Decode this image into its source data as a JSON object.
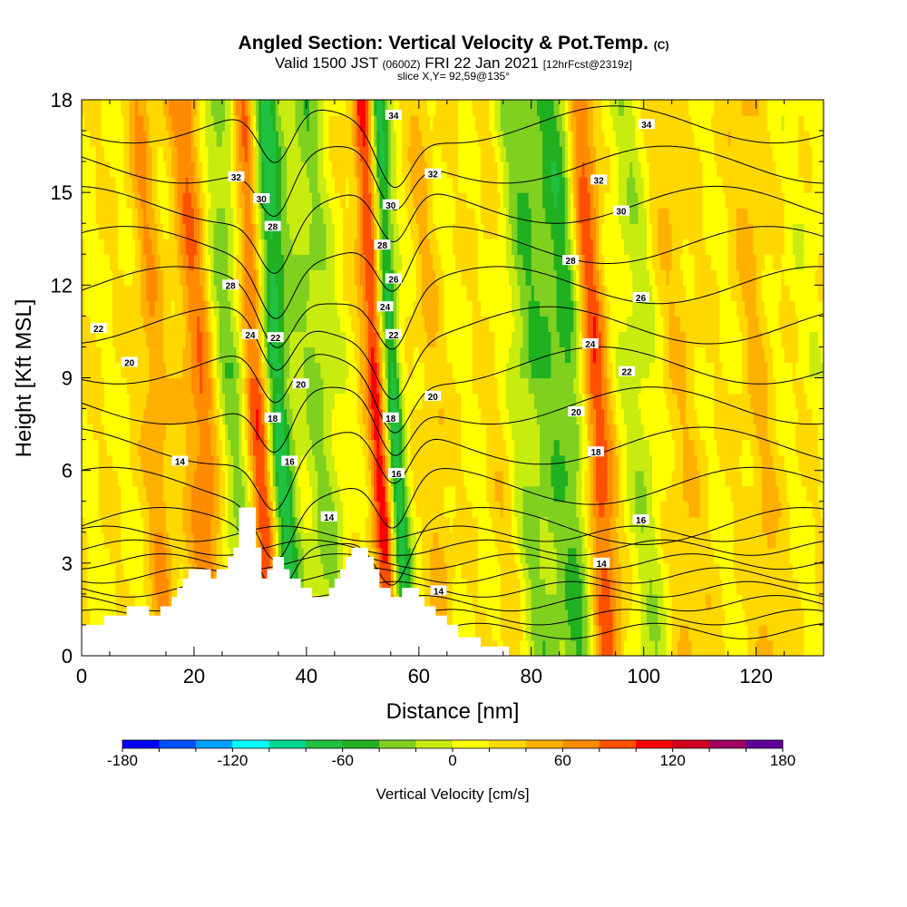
{
  "title": {
    "main": "Angled Section: Vertical Velocity & Pot.Temp.",
    "main_unit": "(C)",
    "valid_prefix": "Valid 1500 JST",
    "valid_utc": "(0600Z)",
    "valid_date": "FRI 22 Jan 2021",
    "forecast": "[12hrFcst@2319z]",
    "slice": "slice X,Y= 92,59@135°"
  },
  "chart_data": {
    "type": "heatmap",
    "xlabel": "Distance [nm]",
    "ylabel": "Height [Kft MSL]",
    "xlim": [
      0,
      132
    ],
    "ylim": [
      0,
      18
    ],
    "x_ticks": [
      "0",
      "20",
      "40",
      "60",
      "80",
      "100",
      "120"
    ],
    "y_ticks": [
      "0",
      "3",
      "6",
      "9",
      "12",
      "15",
      "18"
    ],
    "grid": false,
    "colorbar": {
      "label": "Vertical Velocity [cm/s]",
      "ticks": [
        "-180",
        "-120",
        "-60",
        "0",
        "60",
        "120",
        "180"
      ],
      "range": [
        -180,
        180
      ],
      "colors": [
        "#0000ff",
        "#0050ff",
        "#00a0ff",
        "#00ffff",
        "#00d890",
        "#20c040",
        "#20b020",
        "#80d020",
        "#c8ec10",
        "#ffff00",
        "#ffd800",
        "#ffb000",
        "#ff8c00",
        "#ff5000",
        "#ff0000",
        "#d00020",
        "#a00060",
        "#60009a"
      ]
    },
    "updrafts": [
      {
        "x": 22,
        "w": 2.2,
        "v": 65
      },
      {
        "x": 32.5,
        "w": 1.8,
        "v": 150
      },
      {
        "x": 54,
        "w": 1.6,
        "v": 140
      },
      {
        "x": 92,
        "w": 1.8,
        "v": 85
      },
      {
        "x": 13.5,
        "w": 1.6,
        "v": 40
      },
      {
        "x": 63,
        "w": 1.5,
        "v": 25
      },
      {
        "x": 75,
        "w": 2,
        "v": 25
      },
      {
        "x": 107,
        "w": 2.5,
        "v": 20
      },
      {
        "x": 121,
        "w": 2,
        "v": 25
      }
    ],
    "downdrafts": [
      {
        "x": 34.5,
        "w": 2.2,
        "v": -130
      },
      {
        "x": 55.5,
        "w": 1.4,
        "v": -155
      },
      {
        "x": 27,
        "w": 2.5,
        "v": -45
      },
      {
        "x": 43,
        "w": 2.5,
        "v": -40
      },
      {
        "x": 82,
        "w": 5,
        "v": -45
      },
      {
        "x": 88,
        "w": 2,
        "v": -35
      },
      {
        "x": 100,
        "w": 2.5,
        "v": -30
      }
    ],
    "terrain": [
      [
        0,
        1
      ],
      [
        4,
        1
      ],
      [
        4,
        1.3
      ],
      [
        8,
        1.3
      ],
      [
        8,
        1.6
      ],
      [
        12,
        1.6
      ],
      [
        12,
        1.3
      ],
      [
        14,
        1.3
      ],
      [
        14,
        1.6
      ],
      [
        16,
        1.6
      ],
      [
        16,
        1.9
      ],
      [
        17,
        1.9
      ],
      [
        17,
        2.2
      ],
      [
        18,
        2.2
      ],
      [
        18,
        2.5
      ],
      [
        19,
        2.5
      ],
      [
        19,
        2.8
      ],
      [
        23,
        2.8
      ],
      [
        23,
        2.5
      ],
      [
        24,
        2.5
      ],
      [
        24,
        2.8
      ],
      [
        26,
        2.8
      ],
      [
        26,
        3.2
      ],
      [
        27,
        3.2
      ],
      [
        27,
        3.5
      ],
      [
        28,
        3.5
      ],
      [
        28,
        4.8
      ],
      [
        31,
        4.8
      ],
      [
        31,
        3.5
      ],
      [
        32,
        3.5
      ],
      [
        32,
        2.5
      ],
      [
        33,
        2.5
      ],
      [
        33,
        2.8
      ],
      [
        34,
        2.8
      ],
      [
        34,
        3.2
      ],
      [
        36,
        3.2
      ],
      [
        36,
        2.8
      ],
      [
        37,
        2.8
      ],
      [
        37,
        2.5
      ],
      [
        39,
        2.5
      ],
      [
        39,
        2.2
      ],
      [
        41,
        2.2
      ],
      [
        41,
        1.9
      ],
      [
        44,
        1.9
      ],
      [
        44,
        2.2
      ],
      [
        45,
        2.2
      ],
      [
        45,
        2.5
      ],
      [
        46,
        2.5
      ],
      [
        46,
        2.8
      ],
      [
        47,
        2.8
      ],
      [
        47,
        3.2
      ],
      [
        48,
        3.2
      ],
      [
        48,
        3.5
      ],
      [
        51,
        3.5
      ],
      [
        51,
        3.2
      ],
      [
        52,
        3.2
      ],
      [
        52,
        2.8
      ],
      [
        53,
        2.8
      ],
      [
        53,
        2.2
      ],
      [
        55,
        2.2
      ],
      [
        55,
        1.9
      ],
      [
        57,
        1.9
      ],
      [
        57,
        2.2
      ],
      [
        60,
        2.2
      ],
      [
        60,
        1.9
      ],
      [
        61,
        1.9
      ],
      [
        61,
        1.6
      ],
      [
        63,
        1.6
      ],
      [
        63,
        1.3
      ],
      [
        65,
        1.3
      ],
      [
        65,
        1
      ],
      [
        67,
        1
      ],
      [
        67,
        0.6
      ],
      [
        71,
        0.6
      ],
      [
        71,
        0.3
      ],
      [
        76,
        0.3
      ],
      [
        76,
        0
      ],
      [
        132,
        0
      ]
    ],
    "isentropes": [
      14,
      16,
      18,
      20,
      22,
      24,
      26,
      28,
      30,
      32,
      34
    ],
    "contour_labels": [
      {
        "x": 3,
        "y": 10.6,
        "text": "22"
      },
      {
        "x": 8.5,
        "y": 9.5,
        "text": "20"
      },
      {
        "x": 17.5,
        "y": 6.3,
        "text": "14"
      },
      {
        "x": 27.5,
        "y": 15.5,
        "text": "32"
      },
      {
        "x": 32,
        "y": 14.8,
        "text": "30"
      },
      {
        "x": 34,
        "y": 13.9,
        "text": "28"
      },
      {
        "x": 26.5,
        "y": 12,
        "text": "28"
      },
      {
        "x": 30,
        "y": 10.4,
        "text": "24"
      },
      {
        "x": 34.5,
        "y": 10.3,
        "text": "22"
      },
      {
        "x": 39,
        "y": 8.8,
        "text": "20"
      },
      {
        "x": 34,
        "y": 7.7,
        "text": "18"
      },
      {
        "x": 37,
        "y": 6.3,
        "text": "16"
      },
      {
        "x": 44,
        "y": 4.5,
        "text": "14"
      },
      {
        "x": 55.5,
        "y": 17.5,
        "text": "34"
      },
      {
        "x": 62.5,
        "y": 15.6,
        "text": "32"
      },
      {
        "x": 55,
        "y": 14.6,
        "text": "30"
      },
      {
        "x": 53.5,
        "y": 13.3,
        "text": "28"
      },
      {
        "x": 55.5,
        "y": 12.2,
        "text": "26"
      },
      {
        "x": 54,
        "y": 11.3,
        "text": "24"
      },
      {
        "x": 55.5,
        "y": 10.4,
        "text": "22"
      },
      {
        "x": 62.5,
        "y": 8.4,
        "text": "20"
      },
      {
        "x": 55,
        "y": 7.7,
        "text": "18"
      },
      {
        "x": 56,
        "y": 5.9,
        "text": "16"
      },
      {
        "x": 63.5,
        "y": 2.1,
        "text": "14"
      },
      {
        "x": 100.5,
        "y": 17.2,
        "text": "34"
      },
      {
        "x": 92,
        "y": 15.4,
        "text": "32"
      },
      {
        "x": 96,
        "y": 14.4,
        "text": "30"
      },
      {
        "x": 87,
        "y": 12.8,
        "text": "28"
      },
      {
        "x": 99.5,
        "y": 11.6,
        "text": "26"
      },
      {
        "x": 90.5,
        "y": 10.1,
        "text": "24"
      },
      {
        "x": 97,
        "y": 9.2,
        "text": "22"
      },
      {
        "x": 88,
        "y": 7.9,
        "text": "20"
      },
      {
        "x": 91.5,
        "y": 6.6,
        "text": "18"
      },
      {
        "x": 99.5,
        "y": 4.4,
        "text": "16"
      },
      {
        "x": 92.5,
        "y": 3,
        "text": "14"
      }
    ]
  }
}
